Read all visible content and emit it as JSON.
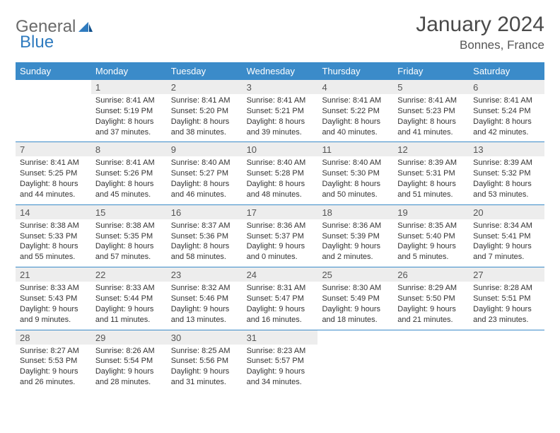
{
  "brand": {
    "general": "General",
    "blue": "Blue"
  },
  "title": "January 2024",
  "location": "Bonnes, France",
  "colors": {
    "header_bg": "#3b8bc9",
    "header_text": "#ffffff",
    "daynum_bg": "#ededed",
    "rule": "#3b8bc9",
    "text": "#333333",
    "brand_gray": "#6a6a6a",
    "brand_blue": "#2f7bbf"
  },
  "weekday_labels": [
    "Sunday",
    "Monday",
    "Tuesday",
    "Wednesday",
    "Thursday",
    "Friday",
    "Saturday"
  ],
  "weeks": [
    [
      {
        "day": "",
        "lines": []
      },
      {
        "day": "1",
        "lines": [
          "Sunrise: 8:41 AM",
          "Sunset: 5:19 PM",
          "Daylight: 8 hours and 37 minutes."
        ]
      },
      {
        "day": "2",
        "lines": [
          "Sunrise: 8:41 AM",
          "Sunset: 5:20 PM",
          "Daylight: 8 hours and 38 minutes."
        ]
      },
      {
        "day": "3",
        "lines": [
          "Sunrise: 8:41 AM",
          "Sunset: 5:21 PM",
          "Daylight: 8 hours and 39 minutes."
        ]
      },
      {
        "day": "4",
        "lines": [
          "Sunrise: 8:41 AM",
          "Sunset: 5:22 PM",
          "Daylight: 8 hours and 40 minutes."
        ]
      },
      {
        "day": "5",
        "lines": [
          "Sunrise: 8:41 AM",
          "Sunset: 5:23 PM",
          "Daylight: 8 hours and 41 minutes."
        ]
      },
      {
        "day": "6",
        "lines": [
          "Sunrise: 8:41 AM",
          "Sunset: 5:24 PM",
          "Daylight: 8 hours and 42 minutes."
        ]
      }
    ],
    [
      {
        "day": "7",
        "lines": [
          "Sunrise: 8:41 AM",
          "Sunset: 5:25 PM",
          "Daylight: 8 hours and 44 minutes."
        ]
      },
      {
        "day": "8",
        "lines": [
          "Sunrise: 8:41 AM",
          "Sunset: 5:26 PM",
          "Daylight: 8 hours and 45 minutes."
        ]
      },
      {
        "day": "9",
        "lines": [
          "Sunrise: 8:40 AM",
          "Sunset: 5:27 PM",
          "Daylight: 8 hours and 46 minutes."
        ]
      },
      {
        "day": "10",
        "lines": [
          "Sunrise: 8:40 AM",
          "Sunset: 5:28 PM",
          "Daylight: 8 hours and 48 minutes."
        ]
      },
      {
        "day": "11",
        "lines": [
          "Sunrise: 8:40 AM",
          "Sunset: 5:30 PM",
          "Daylight: 8 hours and 50 minutes."
        ]
      },
      {
        "day": "12",
        "lines": [
          "Sunrise: 8:39 AM",
          "Sunset: 5:31 PM",
          "Daylight: 8 hours and 51 minutes."
        ]
      },
      {
        "day": "13",
        "lines": [
          "Sunrise: 8:39 AM",
          "Sunset: 5:32 PM",
          "Daylight: 8 hours and 53 minutes."
        ]
      }
    ],
    [
      {
        "day": "14",
        "lines": [
          "Sunrise: 8:38 AM",
          "Sunset: 5:33 PM",
          "Daylight: 8 hours and 55 minutes."
        ]
      },
      {
        "day": "15",
        "lines": [
          "Sunrise: 8:38 AM",
          "Sunset: 5:35 PM",
          "Daylight: 8 hours and 57 minutes."
        ]
      },
      {
        "day": "16",
        "lines": [
          "Sunrise: 8:37 AM",
          "Sunset: 5:36 PM",
          "Daylight: 8 hours and 58 minutes."
        ]
      },
      {
        "day": "17",
        "lines": [
          "Sunrise: 8:36 AM",
          "Sunset: 5:37 PM",
          "Daylight: 9 hours and 0 minutes."
        ]
      },
      {
        "day": "18",
        "lines": [
          "Sunrise: 8:36 AM",
          "Sunset: 5:39 PM",
          "Daylight: 9 hours and 2 minutes."
        ]
      },
      {
        "day": "19",
        "lines": [
          "Sunrise: 8:35 AM",
          "Sunset: 5:40 PM",
          "Daylight: 9 hours and 5 minutes."
        ]
      },
      {
        "day": "20",
        "lines": [
          "Sunrise: 8:34 AM",
          "Sunset: 5:41 PM",
          "Daylight: 9 hours and 7 minutes."
        ]
      }
    ],
    [
      {
        "day": "21",
        "lines": [
          "Sunrise: 8:33 AM",
          "Sunset: 5:43 PM",
          "Daylight: 9 hours and 9 minutes."
        ]
      },
      {
        "day": "22",
        "lines": [
          "Sunrise: 8:33 AM",
          "Sunset: 5:44 PM",
          "Daylight: 9 hours and 11 minutes."
        ]
      },
      {
        "day": "23",
        "lines": [
          "Sunrise: 8:32 AM",
          "Sunset: 5:46 PM",
          "Daylight: 9 hours and 13 minutes."
        ]
      },
      {
        "day": "24",
        "lines": [
          "Sunrise: 8:31 AM",
          "Sunset: 5:47 PM",
          "Daylight: 9 hours and 16 minutes."
        ]
      },
      {
        "day": "25",
        "lines": [
          "Sunrise: 8:30 AM",
          "Sunset: 5:49 PM",
          "Daylight: 9 hours and 18 minutes."
        ]
      },
      {
        "day": "26",
        "lines": [
          "Sunrise: 8:29 AM",
          "Sunset: 5:50 PM",
          "Daylight: 9 hours and 21 minutes."
        ]
      },
      {
        "day": "27",
        "lines": [
          "Sunrise: 8:28 AM",
          "Sunset: 5:51 PM",
          "Daylight: 9 hours and 23 minutes."
        ]
      }
    ],
    [
      {
        "day": "28",
        "lines": [
          "Sunrise: 8:27 AM",
          "Sunset: 5:53 PM",
          "Daylight: 9 hours and 26 minutes."
        ]
      },
      {
        "day": "29",
        "lines": [
          "Sunrise: 8:26 AM",
          "Sunset: 5:54 PM",
          "Daylight: 9 hours and 28 minutes."
        ]
      },
      {
        "day": "30",
        "lines": [
          "Sunrise: 8:25 AM",
          "Sunset: 5:56 PM",
          "Daylight: 9 hours and 31 minutes."
        ]
      },
      {
        "day": "31",
        "lines": [
          "Sunrise: 8:23 AM",
          "Sunset: 5:57 PM",
          "Daylight: 9 hours and 34 minutes."
        ]
      },
      {
        "day": "",
        "lines": []
      },
      {
        "day": "",
        "lines": []
      },
      {
        "day": "",
        "lines": []
      }
    ]
  ]
}
